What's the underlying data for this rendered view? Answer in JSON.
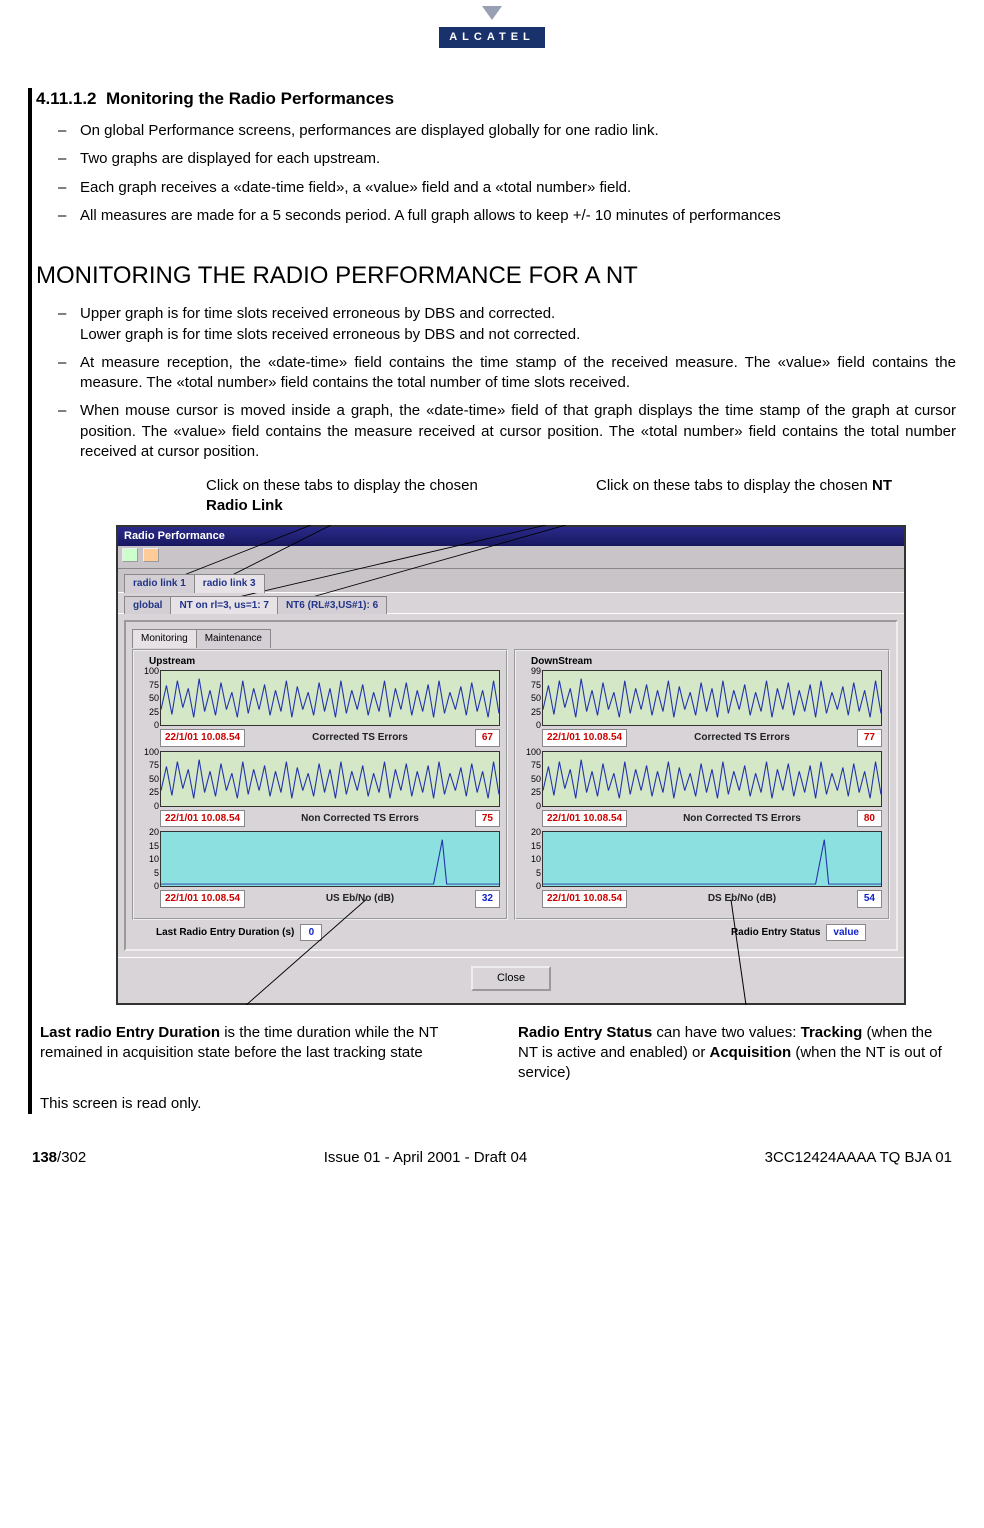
{
  "logo": {
    "letters": "ALCATEL"
  },
  "section": {
    "number": "4.11.1.2",
    "title": "Monitoring the Radio Performances",
    "bullets1": [
      "On global Performance screens, performances are displayed globally for one radio link.",
      "Two graphs are displayed for each upstream.",
      "Each graph receives a «date-time field», a «value» field and a «total number» field.",
      "All measures are made for a 5 seconds period. A full graph allows to keep +/- 10 minutes of performances"
    ],
    "heading2": "MONITORING THE RADIO PERFORMANCE FOR A NT",
    "bullets2": [
      "Upper graph is for time slots received erroneous by DBS and corrected.\nLower graph  is for time slots received erroneous by DBS and not corrected.",
      "At measure reception, the «date-time» field contains the time stamp of the received measure. The «value» field contains the measure. The «total number» field contains the total number of time slots received.",
      "When mouse cursor is moved inside a graph, the «date-time» field of that graph displays the time stamp of the graph at cursor position. The «value» field contains the measure received at cursor position. The «total number» field contains the total number received at cursor position."
    ]
  },
  "callout_left": "Click on these tabs to display the chosen ",
  "callout_left_bold": "Radio Link",
  "callout_right": "Click on these tabs to display the chosen ",
  "callout_right_bold": "NT",
  "window": {
    "title": "Radio Performance",
    "tabs_rl": [
      "radio link 1",
      "radio link 3"
    ],
    "tabs_rl_active": 1,
    "tabs_nt": [
      "global",
      "NT on rl=3, us=1: 7",
      "NT6 (RL#3,US#1): 6"
    ],
    "tabs_nt_active": 1,
    "mm_tabs": [
      "Monitoring",
      "Maintenance"
    ],
    "mm_active": 0,
    "columns": [
      {
        "title": "Upstream",
        "graphs": [
          {
            "yticks": [
              100,
              75,
              50,
              25,
              0
            ],
            "date": "22/1/01 10.08.54",
            "label": "Corrected TS Errors",
            "value": "67",
            "color": "#2233aa",
            "bg": "green"
          },
          {
            "yticks": [
              100,
              75,
              50,
              25,
              0
            ],
            "date": "22/1/01 10.08.54",
            "label": "Non Corrected TS Errors",
            "value": "75",
            "color": "#2233aa",
            "bg": "green"
          },
          {
            "yticks": [
              20,
              15,
              10,
              5,
              0
            ],
            "date": "22/1/01 10.08.54",
            "label": "US Eb/No (dB)",
            "value": "32",
            "color": "#2233aa",
            "bg": "cyan",
            "valblue": true
          }
        ]
      },
      {
        "title": "DownStream",
        "graphs": [
          {
            "yticks": [
              99,
              75,
              50,
              25,
              0
            ],
            "date": "22/1/01 10.08.54",
            "label": "Corrected TS Errors",
            "value": "77",
            "color": "#2233aa",
            "bg": "green"
          },
          {
            "yticks": [
              100,
              75,
              50,
              25,
              0
            ],
            "date": "22/1/01 10.08.54",
            "label": "Non Corrected TS Errors",
            "value": "80",
            "color": "#2233aa",
            "bg": "green"
          },
          {
            "yticks": [
              20,
              15,
              10,
              5,
              0
            ],
            "date": "22/1/01 10.08.54",
            "label": "DS Eb/No (dB)",
            "value": "54",
            "color": "#2233aa",
            "bg": "cyan",
            "valblue": true
          }
        ]
      }
    ],
    "status_left_label": "Last Radio Entry Duration (s)",
    "status_left_value": "0",
    "status_right_label": "Radio Entry Status",
    "status_right_value": "value",
    "close": "Close"
  },
  "note_left_1": "Last radio Entry Duration",
  "note_left_2": " is the time duration while the NT remained in acquisition state before the last tracking state",
  "note_right_1": "Radio Entry Status",
  "note_right_2": " can have two values: ",
  "note_right_3": "Tracking",
  "note_right_4": "  (when the NT is active and enabled) or ",
  "note_right_5": "Acquisition",
  "note_right_6": " (when the NT is out of service)",
  "readonly": "This screen is read only.",
  "footer": {
    "page_bold": "138",
    "page_total": "/302",
    "center": "Issue 01 - April 2001 - Draft 04",
    "right": "3CC12424AAAA TQ BJA 01"
  },
  "wave": {
    "noisy": "0,40 5,15 10,45 15,10 20,38 25,18 30,48 35,8 40,42 45,20 50,46 55,12 60,40 65,22 70,48 75,10 80,44 85,18 90,40 95,14 100,46 105,20 110,42 115,10 120,48 125,16 130,40 135,22 140,46 145,12 150,42 155,18 160,48 165,10 170,44 175,20 180,40 185,14 190,46 195,22 200,42 205,10 210,48 215,18 220,40 225,12 230,46 235,20 240,42 245,14 250,48 255,10 260,44 265,22 270,40 275,16 280,46 285,12 290,42 295,20 300,48 305,10 310,44",
    "flat": "0,54 250,54 258,8 262,54 310,54"
  }
}
